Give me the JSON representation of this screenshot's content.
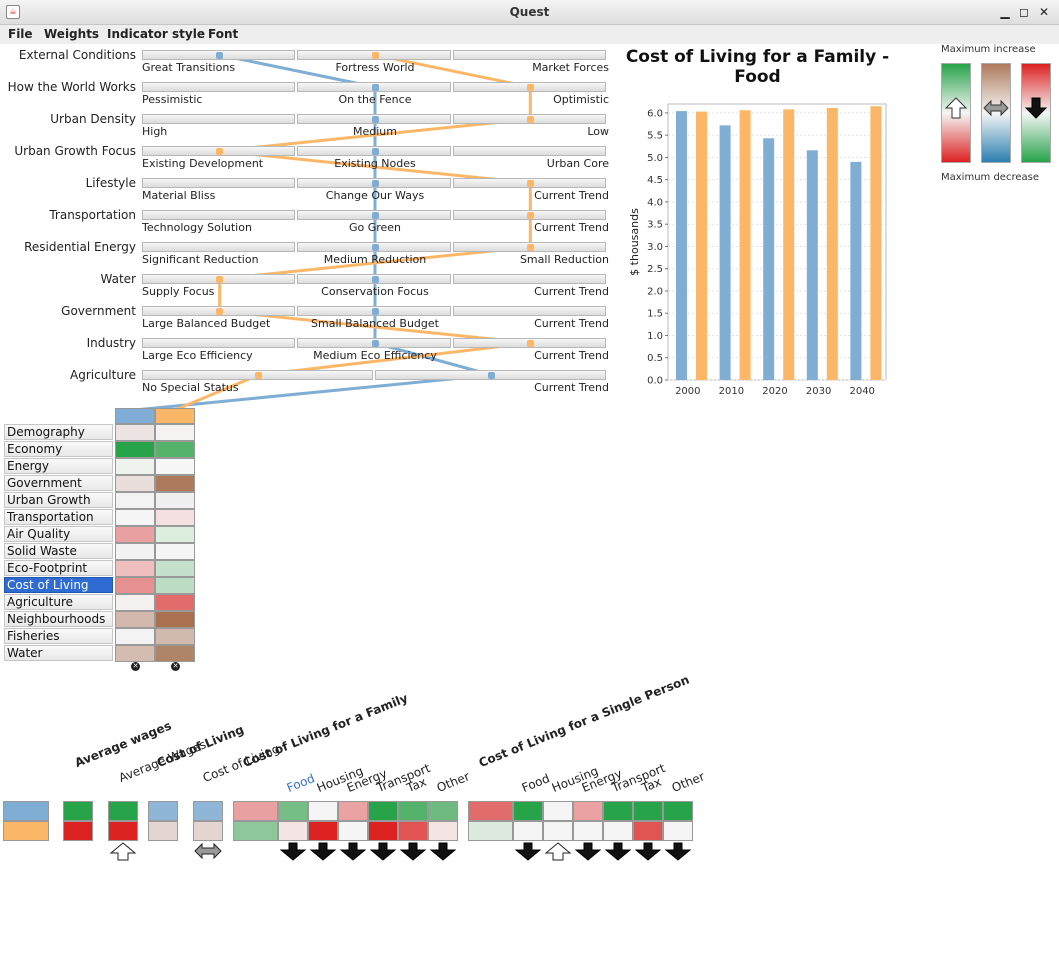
{
  "window": {
    "title": "Quest"
  },
  "menu": [
    "File",
    "Weights",
    "Indicator style",
    "Font"
  ],
  "colors": {
    "scenario_a": "#7fadd4",
    "scenario_b": "#fbb767"
  },
  "sliders": [
    {
      "label": "External Conditions",
      "options": [
        "Great Transitions",
        "Fortress World",
        "Market Forces"
      ],
      "a": 0,
      "b": 1
    },
    {
      "label": "How the World Works",
      "options": [
        "Pessimistic",
        "On the Fence",
        "Optimistic"
      ],
      "a": 1,
      "b": 2
    },
    {
      "label": "Urban Density",
      "options": [
        "High",
        "Medium",
        "Low"
      ],
      "a": 1,
      "b": 2
    },
    {
      "label": "Urban Growth Focus",
      "options": [
        "Existing Development",
        "Existing Nodes",
        "Urban Core"
      ],
      "a": 1,
      "b": 0
    },
    {
      "label": "Lifestyle",
      "options": [
        "Material Bliss",
        "Change Our Ways",
        "Current Trend"
      ],
      "a": 1,
      "b": 2
    },
    {
      "label": "Transportation",
      "options": [
        "Technology Solution",
        "Go Green",
        "Current Trend"
      ],
      "a": 1,
      "b": 2
    },
    {
      "label": "Residential Energy",
      "options": [
        "Significant Reduction",
        "Medium Reduction",
        "Small Reduction"
      ],
      "a": 1,
      "b": 2
    },
    {
      "label": "Water",
      "options": [
        "Supply Focus",
        "Conservation Focus",
        "Current Trend"
      ],
      "a": 1,
      "b": 0
    },
    {
      "label": "Government",
      "options": [
        "Large Balanced Budget",
        "Small Balanced Budget",
        "Current Trend"
      ],
      "a": 1,
      "b": 0
    },
    {
      "label": "Industry",
      "options": [
        "Large Eco Efficiency",
        "Medium Eco Efficiency",
        "Current Trend"
      ],
      "a": 1,
      "b": 2
    },
    {
      "label": "Agriculture",
      "options": [
        "No Special Status",
        "Current Trend"
      ],
      "a": 1,
      "b": 0
    }
  ],
  "categories": [
    {
      "name": "Demography",
      "a": "#ebe4e2",
      "b": "#f5f2f1"
    },
    {
      "name": "Economy",
      "a": "#27a34a",
      "b": "#55b26a"
    },
    {
      "name": "Energy",
      "a": "#eef3ee",
      "b": "#f7f7f7"
    },
    {
      "name": "Government",
      "a": "#e9dedc",
      "b": "#ad7a5c"
    },
    {
      "name": "Urban Growth",
      "a": "#f3f3f3",
      "b": "#f0f0f0"
    },
    {
      "name": "Transportation",
      "a": "#f5f5f5",
      "b": "#f3e1e1"
    },
    {
      "name": "Air Quality",
      "a": "#e9a0a0",
      "b": "#ddeedf"
    },
    {
      "name": "Solid Waste",
      "a": "#f3f2f2",
      "b": "#f5f5f5"
    },
    {
      "name": "Eco-Footprint",
      "a": "#efbfbf",
      "b": "#c6e1cb"
    },
    {
      "name": "Cost of Living",
      "a": "#e69191",
      "b": "#bcdcc3",
      "selected": true
    },
    {
      "name": "Agriculture",
      "a": "#f5f1f1",
      "b": "#e26b6b"
    },
    {
      "name": "Neighbourhoods",
      "a": "#d3b8ad",
      "b": "#a9714f"
    },
    {
      "name": "Fisheries",
      "a": "#f3f3f3",
      "b": "#d2b9ae"
    },
    {
      "name": "Water",
      "a": "#d4bcb1",
      "b": "#b08469"
    }
  ],
  "chart_data": {
    "type": "bar",
    "title": "Cost of Living for a Family - Food",
    "ylabel": "$ thousands",
    "categories": [
      "2000",
      "2010",
      "2020",
      "2030",
      "2040"
    ],
    "series": [
      {
        "values": [
          6.04,
          5.72,
          5.43,
          5.16,
          4.9
        ],
        "color": "#7fadd4"
      },
      {
        "values": [
          6.03,
          6.06,
          6.08,
          6.11,
          6.15
        ],
        "color": "#fbb767"
      }
    ],
    "ylim": [
      0,
      6.2
    ],
    "yticks": [
      "0.0",
      "0.5",
      "1.0",
      "1.5",
      "2.0",
      "2.5",
      "3.0",
      "3.5",
      "4.0",
      "4.5",
      "5.0",
      "5.5",
      "6.0"
    ],
    "grid": true
  },
  "legend": {
    "max_increase": "Maximum increase",
    "max_decrease": "Maximum decrease"
  },
  "bottom": {
    "average_wages_title": "Average wages",
    "average_wages_sub": "Average Wages",
    "cost_of_living_title": "Cost of Living",
    "cost_of_living_sub": "Cost of Living",
    "family_title": "Cost of Living for a Family",
    "family_items": [
      "Food",
      "Housing",
      "Energy",
      "Transport",
      "Tax",
      "Other"
    ],
    "single_title": "Cost of Living for a Single Person",
    "single_items": [
      "Food",
      "Housing",
      "Energy",
      "Transport",
      "Tax",
      "Other"
    ]
  }
}
